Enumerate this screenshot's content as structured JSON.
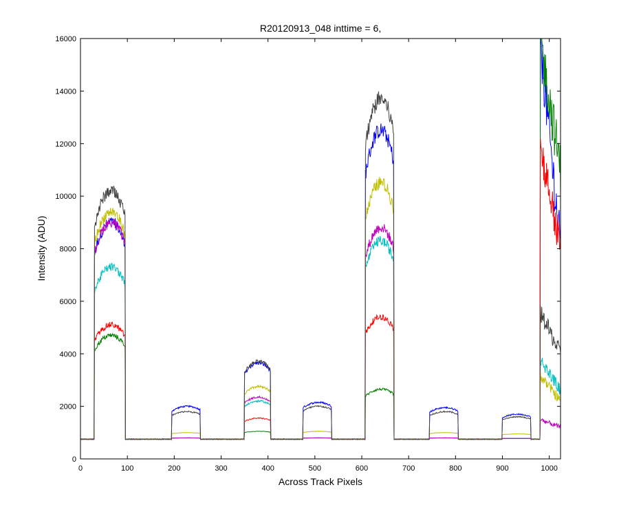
{
  "chart_data": {
    "type": "line",
    "title": "R20120913_048 inttime = 6,",
    "xlabel": "Across Track Pixels",
    "ylabel": "Intensity (ADU)",
    "xlim": [
      0,
      1024
    ],
    "ylim": [
      0,
      16000
    ],
    "xticks": [
      "0",
      "100",
      "200",
      "300",
      "400",
      "500",
      "600",
      "700",
      "800",
      "900",
      "1000"
    ],
    "yticks": [
      "0",
      "2000",
      "4000",
      "6000",
      "8000",
      "10000",
      "12000",
      "14000",
      "16000"
    ],
    "grid": false,
    "legend": "none",
    "baseline": 750,
    "segments": [
      {
        "start": 30,
        "end": 95
      },
      {
        "start": 195,
        "end": 255
      },
      {
        "start": 350,
        "end": 405
      },
      {
        "start": 475,
        "end": 535
      },
      {
        "start": 608,
        "end": 668
      },
      {
        "start": 745,
        "end": 805
      },
      {
        "start": 900,
        "end": 960
      }
    ],
    "series": [
      {
        "color": "#0000ff",
        "levels": [
          9000,
          2000,
          3650,
          2150,
          12500,
          1950,
          1700
        ],
        "edge_right": [
          16000,
          8000
        ]
      },
      {
        "color": "#008000",
        "levels": [
          4700,
          800,
          1050,
          800,
          2650,
          800,
          780
        ],
        "edge_right": [
          16000,
          11000
        ]
      },
      {
        "color": "#ff0000",
        "levels": [
          5100,
          800,
          1550,
          800,
          5400,
          800,
          780
        ],
        "edge_right": [
          12000,
          8000
        ]
      },
      {
        "color": "#00bfbf",
        "levels": [
          7300,
          800,
          2200,
          800,
          8300,
          800,
          780
        ],
        "edge_right": [
          3800,
          2600
        ]
      },
      {
        "color": "#bf00bf",
        "levels": [
          9000,
          800,
          2350,
          800,
          8800,
          800,
          780
        ],
        "edge_right": [
          1500,
          1200
        ]
      },
      {
        "color": "#bfbf00",
        "levels": [
          9400,
          1000,
          2750,
          1050,
          10500,
          1000,
          950
        ],
        "edge_right": [
          3200,
          2200
        ]
      },
      {
        "color": "#404040",
        "levels": [
          10200,
          1800,
          3700,
          2000,
          13700,
          1800,
          1600
        ],
        "edge_right": [
          5600,
          4000
        ]
      }
    ]
  }
}
